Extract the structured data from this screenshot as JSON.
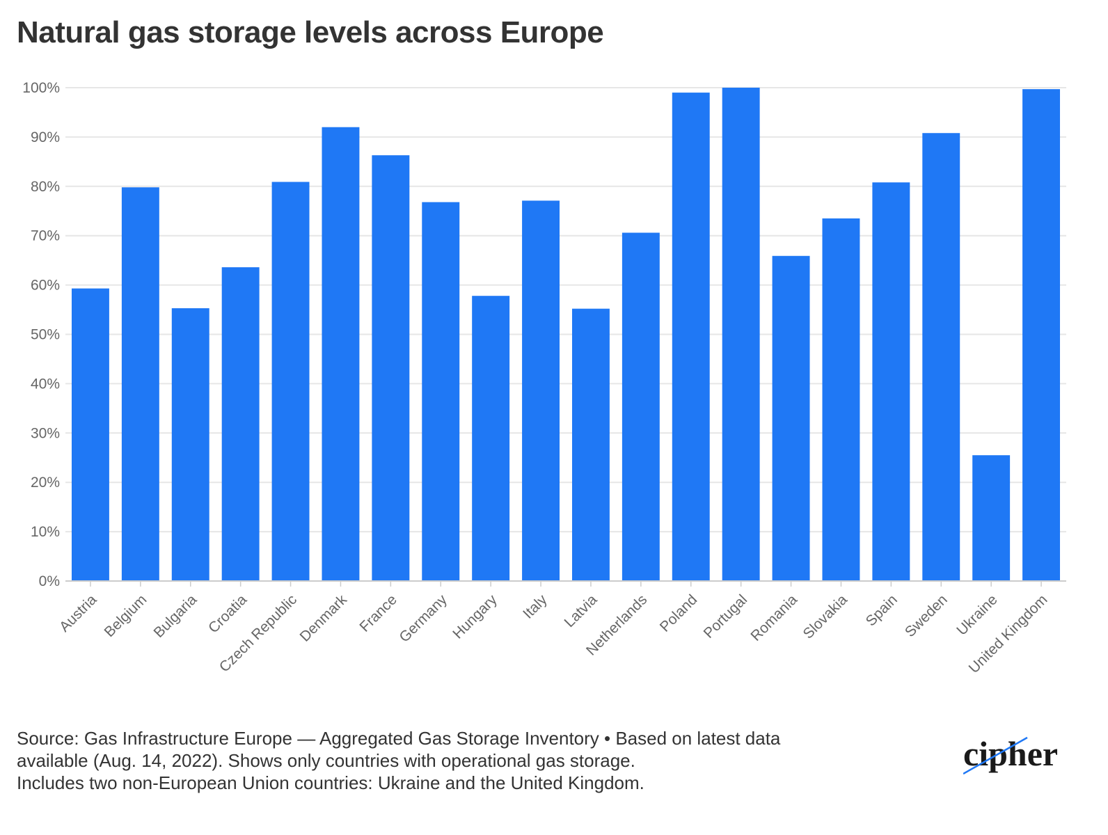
{
  "chart_data": {
    "type": "bar",
    "title": "Natural gas storage levels across Europe",
    "xlabel": "",
    "ylabel": "",
    "categories": [
      "Austria",
      "Belgium",
      "Bulgaria",
      "Croatia",
      "Czech Republic",
      "Denmark",
      "France",
      "Germany",
      "Hungary",
      "Italy",
      "Latvia",
      "Netherlands",
      "Poland",
      "Portugal",
      "Romania",
      "Slovakia",
      "Spain",
      "Sweden",
      "Ukraine",
      "United Kingdom"
    ],
    "values": [
      59.3,
      79.8,
      55.3,
      63.6,
      80.9,
      92.0,
      86.3,
      76.8,
      57.8,
      77.1,
      55.2,
      70.6,
      99.0,
      100.0,
      65.9,
      73.5,
      80.8,
      90.8,
      25.5,
      99.7
    ],
    "ylim": [
      0,
      100
    ],
    "yticks": [
      0,
      10,
      20,
      30,
      40,
      50,
      60,
      70,
      80,
      90,
      100
    ],
    "ytick_labels": [
      "0%",
      "10%",
      "20%",
      "30%",
      "40%",
      "50%",
      "60%",
      "70%",
      "80%",
      "90%",
      "100%"
    ],
    "grid": true,
    "bar_color": "#1f78f5"
  },
  "footnote": {
    "lines": [
      "Source: Gas Infrastructure Europe — Aggregated Gas Storage Inventory • Based on latest data",
      "available (Aug. 14, 2022). Shows only countries with operational gas storage.",
      "Includes two non-European Union countries: Ukraine and the United Kingdom."
    ]
  },
  "logo": {
    "text": "cipher",
    "accent_color": "#1f78f5"
  }
}
